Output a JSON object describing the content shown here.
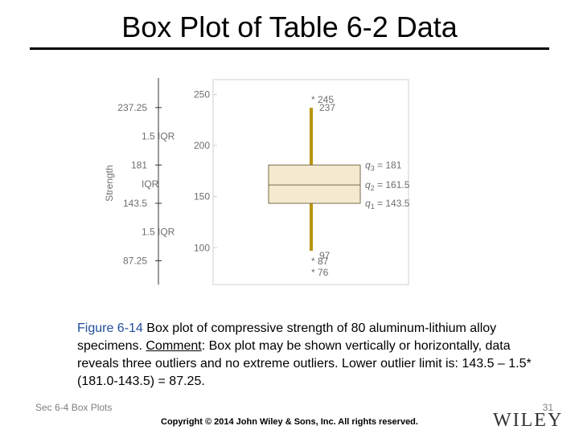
{
  "slide": {
    "title": "Box Plot of Table 6-2 Data",
    "footer_section": "Sec 6-4 Box Plots",
    "page_number": "31",
    "copyright": "Copyright © 2014 John Wiley & Sons, Inc. All rights reserved.",
    "logo_text": "WILEY"
  },
  "caption": {
    "figure_label": "Figure 6-14",
    "text_1": "Box plot of compressive strength of 80 aluminum-lithium alloy specimens.",
    "comment_label": "Comment",
    "text_2": ": Box plot may be shown vertically or horizontally, data reveals three outliers and no extreme outliers. Lower outlier limit is: 143.5 – 1.5*(181.0-143.5) = 87.25."
  },
  "chart_data": {
    "type": "box",
    "orientation": "vertical",
    "ylabel": "Strength",
    "ylim": [
      64,
      256
    ],
    "ticks": [
      {
        "value": 250,
        "label": "250"
      },
      {
        "value": 200,
        "label": "200"
      },
      {
        "value": 150,
        "label": "150"
      },
      {
        "value": 100,
        "label": "100"
      }
    ],
    "box": {
      "q1": 143.5,
      "median": 161.5,
      "q3": 181,
      "whisker_low": 97,
      "whisker_high": 237,
      "outliers": [
        245,
        87,
        76
      ]
    },
    "box_labels": [
      {
        "value": 181,
        "label": "q3 = 181",
        "sub": "3"
      },
      {
        "value": 161.5,
        "label": "q2 = 161.5",
        "sub": "2"
      },
      {
        "value": 143.5,
        "label": "q1 = 143.5",
        "sub": "1"
      }
    ],
    "whisker_labels": [
      {
        "value": 237,
        "label": "237"
      },
      {
        "value": 97,
        "label": "97"
      }
    ],
    "outlier_labels": [
      {
        "value": 245,
        "label": "* 245"
      },
      {
        "value": 87,
        "label": "* 87"
      },
      {
        "value": 76,
        "label": "* 76"
      }
    ],
    "annotation_axis": {
      "values": [
        {
          "value": 237.25,
          "label": "237.25"
        },
        {
          "value": 181,
          "label": "181"
        },
        {
          "value": 143.5,
          "label": "143.5"
        },
        {
          "value": 87.25,
          "label": "87.25"
        }
      ],
      "spans": [
        {
          "from": 181,
          "to": 237.25,
          "label": "1.5 IQR"
        },
        {
          "from": 143.5,
          "to": 181,
          "label": "IQR"
        },
        {
          "from": 87.25,
          "to": 143.5,
          "label": "1.5 IQR"
        }
      ]
    },
    "colors": {
      "box_fill": "#f5ead0",
      "box_stroke": "#7a6a4a",
      "whisker": "#b8940c",
      "frame": "#cfcfcf",
      "text": "#6e6e6e"
    }
  }
}
